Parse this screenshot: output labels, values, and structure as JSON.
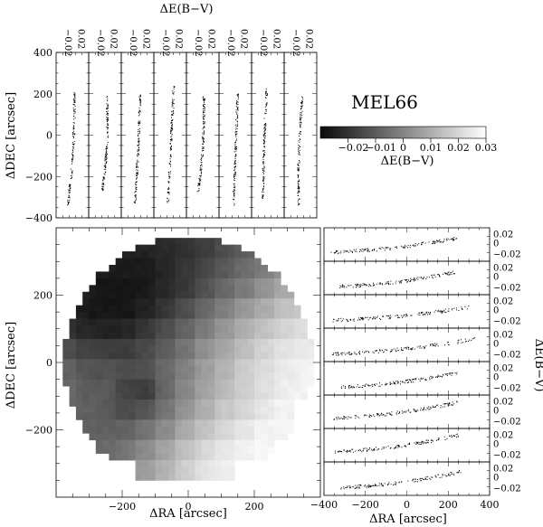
{
  "figure": {
    "title": "MEL66",
    "colorbar": {
      "label": "ΔE(B−V)",
      "range": [
        -0.03,
        0.03
      ],
      "ticks": [
        "−0.02",
        "−0.01",
        "0",
        "0.01",
        "0.02",
        "0.03"
      ],
      "colors": {
        "low": "#0a0a0a",
        "high": "#ffffff"
      }
    },
    "map": {
      "xlabel": "ΔRA [arcsec]",
      "ylabel": "ΔDEC [arcsec]",
      "xticks": [
        "−200",
        "0",
        "200"
      ],
      "yticks": [
        "−200",
        "0",
        "200"
      ]
    },
    "top_strips": {
      "xlabel": "ΔE(B−V)",
      "ylabel": "ΔDEC [arcsec]",
      "yticks": [
        "−400",
        "−200",
        "0",
        "200",
        "400"
      ],
      "xtick_labels": [
        "−0.02",
        "0.02"
      ]
    },
    "right_strips": {
      "xlabel": "ΔRA [arcsec]",
      "ylabel": "ΔE(B−V)",
      "xticks": [
        "−400",
        "−200",
        "0",
        "200",
        "400"
      ],
      "ytick_labels": [
        "0.02",
        "0",
        "−0.02"
      ]
    }
  },
  "chart_data": {
    "type": "heatmap",
    "title": "MEL66",
    "xlabel": "ΔRA [arcsec]",
    "ylabel": "ΔDEC [arcsec]",
    "colorbar_label": "ΔE(B−V)",
    "xlim": [
      -400,
      400
    ],
    "ylim": [
      -400,
      400
    ],
    "color_range": [
      -0.03,
      0.03
    ],
    "grid_x": [
      -370,
      -310,
      -250,
      -190,
      -130,
      -70,
      -10,
      50,
      110,
      170,
      230,
      290,
      350
    ],
    "grid_y": [
      340,
      280,
      220,
      160,
      100,
      40,
      -20,
      -80,
      -140,
      -200,
      -260,
      -320
    ],
    "values_approx": [
      [
        null,
        null,
        null,
        -0.025,
        -0.025,
        -0.023,
        -0.021,
        -0.018,
        -0.014,
        -0.01,
        -0.006,
        null,
        null
      ],
      [
        null,
        -0.024,
        -0.026,
        -0.027,
        -0.026,
        -0.024,
        -0.02,
        -0.016,
        -0.011,
        -0.006,
        -0.002,
        0.003,
        null
      ],
      [
        -0.022,
        -0.026,
        -0.028,
        -0.028,
        -0.027,
        -0.023,
        -0.019,
        -0.013,
        -0.007,
        -0.002,
        0.004,
        0.009,
        0.012
      ],
      [
        -0.023,
        -0.027,
        -0.028,
        -0.028,
        -0.025,
        -0.02,
        -0.014,
        -0.007,
        -0.001,
        0.005,
        0.01,
        0.015,
        0.018
      ],
      [
        -0.02,
        -0.024,
        -0.025,
        -0.024,
        -0.02,
        -0.014,
        -0.008,
        -0.002,
        0.005,
        0.011,
        0.016,
        0.02,
        0.023
      ],
      [
        -0.014,
        -0.017,
        -0.018,
        -0.018,
        -0.015,
        -0.01,
        -0.004,
        0.003,
        0.009,
        0.015,
        0.02,
        0.024,
        0.026
      ],
      [
        -0.009,
        -0.012,
        -0.013,
        -0.014,
        -0.013,
        -0.007,
        -0.001,
        0.006,
        0.012,
        0.018,
        0.022,
        0.026,
        0.028
      ],
      [
        -0.007,
        -0.01,
        -0.011,
        -0.016,
        -0.018,
        -0.008,
        0.001,
        0.008,
        0.014,
        0.019,
        0.023,
        0.027,
        0.028
      ],
      [
        -0.007,
        -0.009,
        -0.011,
        -0.014,
        -0.012,
        -0.004,
        0.004,
        0.011,
        0.017,
        0.021,
        0.025,
        0.028,
        null
      ],
      [
        null,
        -0.009,
        -0.009,
        -0.008,
        -0.004,
        0.002,
        0.009,
        0.016,
        0.021,
        0.025,
        0.028,
        0.029,
        null
      ],
      [
        null,
        null,
        -0.007,
        -0.004,
        0.002,
        0.008,
        0.015,
        0.021,
        0.025,
        0.028,
        0.029,
        null,
        null
      ],
      [
        null,
        null,
        null,
        null,
        0.006,
        0.012,
        0.019,
        0.024,
        0.027,
        null,
        null,
        null,
        null
      ]
    ],
    "top_strip_panels": 8,
    "right_strip_panels": 8
  }
}
